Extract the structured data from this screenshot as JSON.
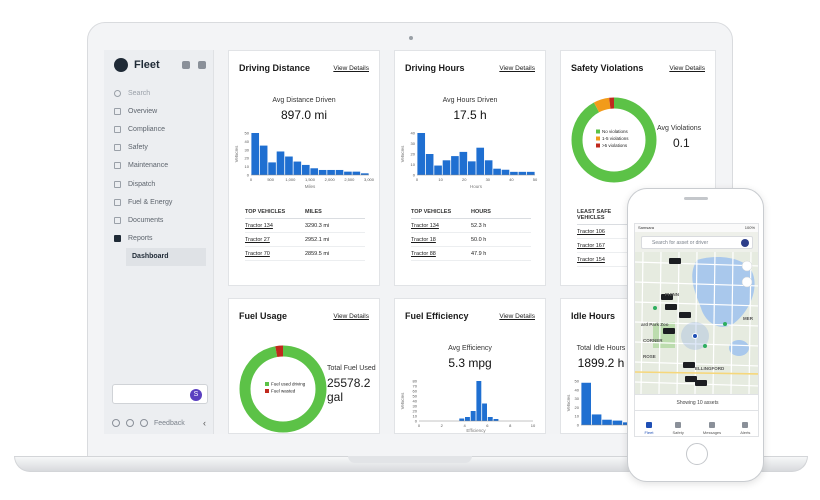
{
  "app": {
    "name": "Fleet"
  },
  "colors": {
    "bar": "#1f6fd1",
    "green": "#5cc247",
    "orange": "#f29b1a",
    "red": "#c0291d",
    "brand": "#1f2a36"
  },
  "sidebar": {
    "search": "Search",
    "items": [
      {
        "label": "Overview",
        "icon": "overview-icon"
      },
      {
        "label": "Compliance",
        "icon": "compliance-icon"
      },
      {
        "label": "Safety",
        "icon": "shield-icon"
      },
      {
        "label": "Maintenance",
        "icon": "wrench-icon"
      },
      {
        "label": "Dispatch",
        "icon": "dispatch-icon"
      },
      {
        "label": "Fuel & Energy",
        "icon": "fuel-icon"
      },
      {
        "label": "Documents",
        "icon": "document-icon"
      },
      {
        "label": "Reports",
        "icon": "reports-icon"
      }
    ],
    "active": "Dashboard",
    "avatar_letter": "S",
    "feedback": "Feedback"
  },
  "cards": {
    "distance": {
      "title": "Driving Distance",
      "link": "View Details",
      "metric_label": "Avg Distance Driven",
      "metric_value": "897.0 mi",
      "chart_ylabel": "Vehicles",
      "chart_xlabel": "Miles",
      "table_headers": [
        "TOP VEHICLES",
        "MILES"
      ],
      "rows": [
        [
          "Tractor 134",
          "3290.3 mi"
        ],
        [
          "Tractor 27",
          "2952.1 mi"
        ],
        [
          "Tractor 70",
          "2859.5 mi"
        ]
      ]
    },
    "hours": {
      "title": "Driving Hours",
      "link": "View Details",
      "metric_label": "Avg Hours Driven",
      "metric_value": "17.5 h",
      "chart_ylabel": "Vehicles",
      "chart_xlabel": "Hours",
      "table_headers": [
        "TOP VEHICLES",
        "HOURS"
      ],
      "rows": [
        [
          "Tractor 134",
          "52.3 h"
        ],
        [
          "Tractor 18",
          "50.0 h"
        ],
        [
          "Tractor 88",
          "47.9 h"
        ]
      ]
    },
    "safety": {
      "title": "Safety Violations",
      "link": "View Details",
      "metric_label": "Avg Violations",
      "metric_value": "0.1",
      "legend": [
        "No violations",
        "1-5 violations",
        ">5 violations"
      ],
      "table_header": "LEAST SAFE VEHICLES",
      "rows": [
        "Tractor 106",
        "Tractor 167",
        "Tractor 154"
      ]
    },
    "fuel": {
      "title": "Fuel Usage",
      "link": "View Details",
      "metric_label": "Total Fuel Used",
      "metric_value_1": "25578.2",
      "metric_value_2": "gal",
      "legend": [
        "Fuel used driving",
        "Fuel wasted"
      ]
    },
    "efficiency": {
      "title": "Fuel Efficiency",
      "link": "View Details",
      "metric_label": "Avg Efficiency",
      "metric_value": "5.3 mpg",
      "chart_ylabel": "Vehicles",
      "chart_xlabel": "Efficiency"
    },
    "idle": {
      "title": "Idle Hours",
      "metric_label": "Total Idle Hours",
      "metric_value": "1899.2 h"
    }
  },
  "phone": {
    "carrier": "Samsara",
    "battery": "100%",
    "search_placeholder": "Search for asset or driver",
    "bottom": "Showing 10 assets",
    "tabs": [
      "Fleet",
      "Safety",
      "Messages",
      "Alerts"
    ],
    "map_labels": [
      "PHINN",
      "CORNER",
      "ROSE",
      "ELLINGFORD",
      "MER",
      "ard Park Zoo"
    ]
  },
  "chart_data": [
    {
      "type": "bar",
      "title": "Driving Distance",
      "ylabel": "Vehicles",
      "xlabel": "Miles",
      "ylim": [
        0,
        50
      ],
      "yticks": [
        0,
        10,
        20,
        30,
        40,
        50
      ],
      "xlim": [
        0,
        3000
      ],
      "xticks": [
        "0",
        "500",
        "1,000",
        "1,500",
        "2,000",
        "2,500",
        "3,000"
      ],
      "values": [
        50,
        35,
        15,
        28,
        22,
        16,
        12,
        8,
        6,
        6,
        6,
        4,
        4,
        2
      ]
    },
    {
      "type": "bar",
      "title": "Driving Hours",
      "ylabel": "Vehicles",
      "xlabel": "Hours",
      "ylim": [
        0,
        40
      ],
      "yticks": [
        0,
        10,
        20,
        30,
        40
      ],
      "xlim": [
        0,
        50
      ],
      "xticks": [
        "0",
        "10",
        "20",
        "30",
        "40",
        "50"
      ],
      "values": [
        40,
        20,
        9,
        14,
        18,
        22,
        13,
        26,
        14,
        6,
        5,
        3,
        3,
        3
      ]
    },
    {
      "type": "pie",
      "title": "Safety Violations",
      "labels": [
        "No violations",
        "1-5 violations",
        ">5 violations"
      ],
      "values": [
        92,
        6,
        2
      ]
    },
    {
      "type": "pie",
      "title": "Fuel Usage",
      "labels": [
        "Fuel used driving",
        "Fuel wasted"
      ],
      "values": [
        97,
        3
      ]
    },
    {
      "type": "bar",
      "title": "Fuel Efficiency",
      "ylabel": "Vehicles",
      "xlabel": "Efficiency",
      "ylim": [
        0,
        80
      ],
      "yticks": [
        0,
        10,
        20,
        30,
        40,
        50,
        60,
        70,
        80
      ],
      "xlim": [
        0,
        10
      ],
      "xticks": [
        "0",
        "2",
        "4",
        "6",
        "8",
        "10"
      ],
      "values": [
        0,
        0,
        0,
        0,
        0,
        0,
        0,
        5,
        8,
        20,
        80,
        35,
        8,
        4,
        0,
        0,
        0,
        0,
        0,
        0
      ]
    },
    {
      "type": "bar",
      "title": "Idle Hours",
      "ylabel": "Vehicles",
      "ylim": [
        0,
        50
      ],
      "yticks": [
        0,
        10,
        20,
        30,
        40,
        50
      ],
      "values": [
        48,
        12,
        6,
        5,
        3
      ]
    }
  ]
}
